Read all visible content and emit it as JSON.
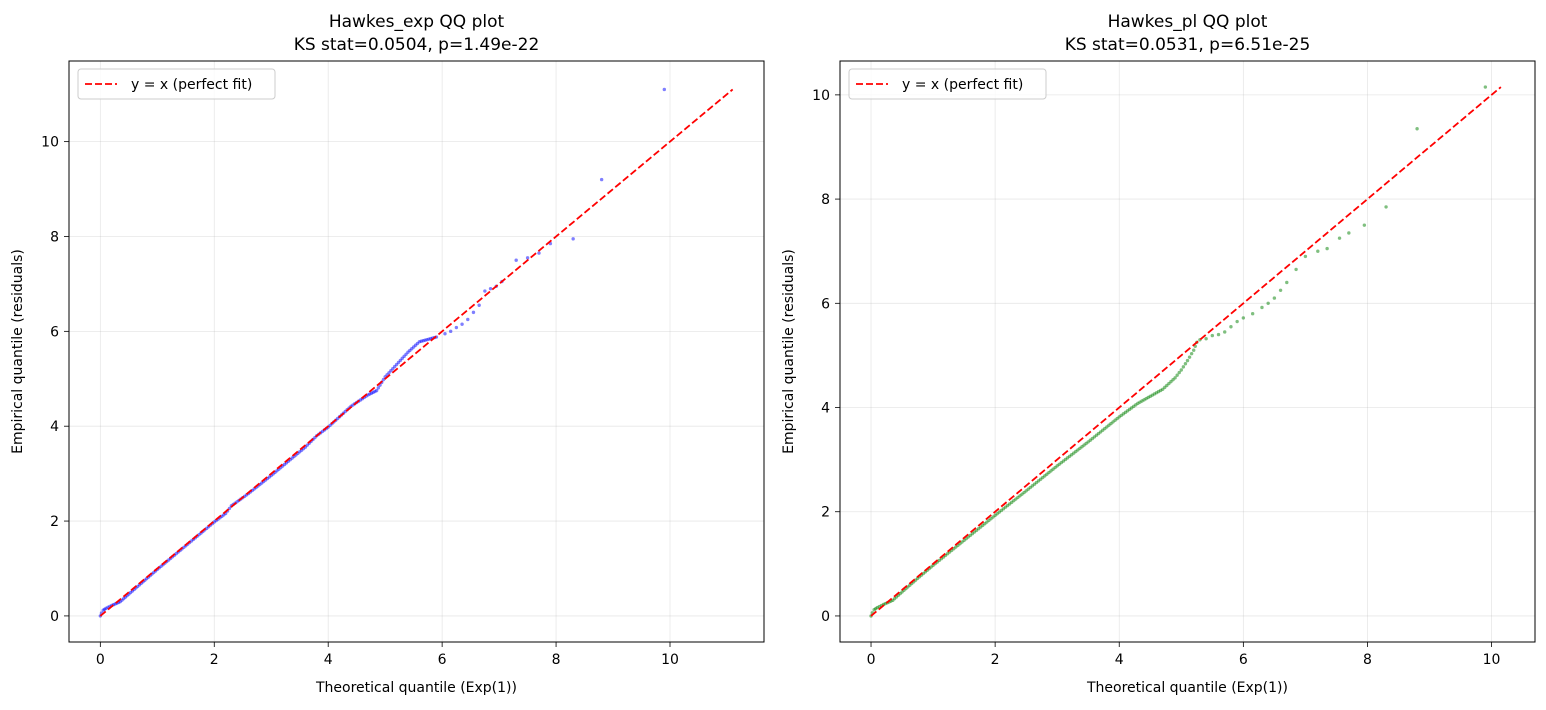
{
  "chart_data": [
    {
      "type": "scatter",
      "title": "Hawkes_exp QQ plot",
      "subtitle": "KS stat=0.0504, p=1.49e-22",
      "xlabel": "Theoretical quantile (Exp(1))",
      "ylabel": "Empirical quantile (residuals)",
      "xlim": [
        -0.55,
        11.65
      ],
      "ylim": [
        -0.55,
        11.7
      ],
      "xticks": [
        0,
        2,
        4,
        6,
        8,
        10
      ],
      "yticks": [
        0,
        2,
        4,
        6,
        8,
        10
      ],
      "grid": true,
      "legend_position": "top-left",
      "reference_line": {
        "label": "y = x (perfect fit)",
        "x": [
          0,
          11.1
        ],
        "y": [
          0,
          11.1
        ],
        "color": "#ff0000",
        "style": "dashed"
      },
      "series": [
        {
          "color": "#0000ff",
          "dense_curve": [
            [
              0,
              0
            ],
            [
              0.02,
              0.06
            ],
            [
              0.05,
              0.12
            ],
            [
              0.1,
              0.16
            ],
            [
              0.2,
              0.22
            ],
            [
              0.35,
              0.3
            ],
            [
              0.5,
              0.46
            ],
            [
              0.75,
              0.72
            ],
            [
              1,
              0.98
            ],
            [
              1.5,
              1.48
            ],
            [
              2,
              1.98
            ],
            [
              2.2,
              2.16
            ],
            [
              2.3,
              2.32
            ],
            [
              2.6,
              2.58
            ],
            [
              3,
              2.96
            ],
            [
              3.3,
              3.26
            ],
            [
              3.6,
              3.56
            ],
            [
              3.8,
              3.8
            ],
            [
              4,
              3.98
            ],
            [
              4.2,
              4.2
            ],
            [
              4.4,
              4.42
            ],
            [
              4.7,
              4.66
            ],
            [
              4.85,
              4.75
            ],
            [
              5,
              5.04
            ],
            [
              5.2,
              5.3
            ],
            [
              5.4,
              5.56
            ],
            [
              5.6,
              5.78
            ],
            [
              5.9,
              5.88
            ]
          ],
          "points": [
            [
              6.05,
              5.95
            ],
            [
              6.15,
              6.0
            ],
            [
              6.25,
              6.08
            ],
            [
              6.35,
              6.15
            ],
            [
              6.45,
              6.25
            ],
            [
              6.55,
              6.4
            ],
            [
              6.65,
              6.55
            ],
            [
              6.75,
              6.85
            ],
            [
              6.85,
              6.9
            ],
            [
              6.95,
              6.95
            ],
            [
              7.05,
              7.05
            ],
            [
              7.3,
              7.5
            ],
            [
              7.5,
              7.55
            ],
            [
              7.7,
              7.65
            ],
            [
              7.9,
              7.85
            ],
            [
              8.3,
              7.95
            ],
            [
              8.8,
              9.2
            ],
            [
              9.9,
              11.1
            ]
          ]
        }
      ]
    },
    {
      "type": "scatter",
      "title": "Hawkes_pl QQ plot",
      "subtitle": "KS stat=0.0531, p=6.51e-25",
      "xlabel": "Theoretical quantile (Exp(1))",
      "ylabel": "Empirical quantile (residuals)",
      "xlim": [
        -0.5,
        10.7
      ],
      "ylim": [
        -0.5,
        10.65
      ],
      "xticks": [
        0,
        2,
        4,
        6,
        8,
        10
      ],
      "yticks": [
        0,
        2,
        4,
        6,
        8,
        10
      ],
      "grid": true,
      "legend_position": "top-left",
      "reference_line": {
        "label": "y = x (perfect fit)",
        "x": [
          0,
          10.15
        ],
        "y": [
          0,
          10.15
        ],
        "color": "#ff0000",
        "style": "dashed"
      },
      "series": [
        {
          "color": "#008000",
          "dense_curve": [
            [
              0,
              0
            ],
            [
              0.02,
              0.06
            ],
            [
              0.05,
              0.12
            ],
            [
              0.1,
              0.16
            ],
            [
              0.2,
              0.22
            ],
            [
              0.35,
              0.3
            ],
            [
              0.5,
              0.46
            ],
            [
              0.75,
              0.72
            ],
            [
              1,
              0.97
            ],
            [
              1.5,
              1.45
            ],
            [
              2,
              1.93
            ],
            [
              2.5,
              2.4
            ],
            [
              3,
              2.88
            ],
            [
              3.5,
              3.34
            ],
            [
              4,
              3.82
            ],
            [
              4.3,
              4.08
            ],
            [
              4.7,
              4.35
            ],
            [
              4.9,
              4.57
            ],
            [
              5.0,
              4.72
            ],
            [
              5.1,
              4.9
            ],
            [
              5.2,
              5.1
            ],
            [
              5.25,
              5.25
            ]
          ],
          "points": [
            [
              5.3,
              5.3
            ],
            [
              5.4,
              5.32
            ],
            [
              5.5,
              5.38
            ],
            [
              5.6,
              5.4
            ],
            [
              5.7,
              5.45
            ],
            [
              5.8,
              5.55
            ],
            [
              5.9,
              5.65
            ],
            [
              6.0,
              5.72
            ],
            [
              6.15,
              5.8
            ],
            [
              6.3,
              5.92
            ],
            [
              6.4,
              6.0
            ],
            [
              6.5,
              6.1
            ],
            [
              6.6,
              6.25
            ],
            [
              6.7,
              6.4
            ],
            [
              6.85,
              6.65
            ],
            [
              7.0,
              6.9
            ],
            [
              7.2,
              7.0
            ],
            [
              7.35,
              7.05
            ],
            [
              7.55,
              7.25
            ],
            [
              7.7,
              7.35
            ],
            [
              7.95,
              7.5
            ],
            [
              8.3,
              7.85
            ],
            [
              8.8,
              9.35
            ],
            [
              9.9,
              10.15
            ]
          ]
        }
      ]
    }
  ]
}
